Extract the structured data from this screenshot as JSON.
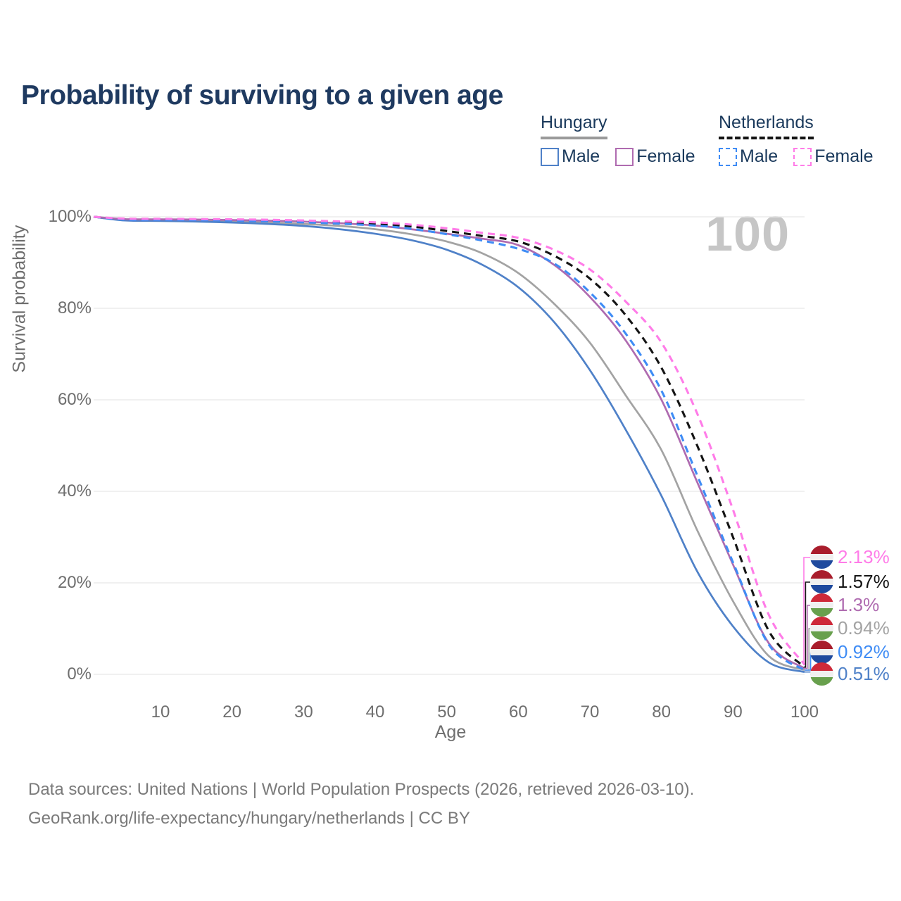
{
  "page": {
    "title": "Probability of surviving to a given age"
  },
  "colors": {
    "title_text": "#1f3a60",
    "legend_text": "#1b3a5c",
    "axis_text": "#6e6e6e",
    "gridline": "#ececec",
    "watermark": "#c6c6c6",
    "footer_text": "#7a7a7a",
    "hungary_underline": "#9a9a9a",
    "netherlands_underline": "#141414"
  },
  "legend": {
    "hungary": {
      "label": "Hungary",
      "male_label": "Male",
      "female_label": "Female"
    },
    "netherlands": {
      "label": "Netherlands",
      "male_label": "Male",
      "female_label": "Female"
    }
  },
  "watermark": {
    "hover_age": "100"
  },
  "footer": {
    "line1": "Data sources: United Nations | World Population Prospects (2026, retrieved 2026-03-10).",
    "line2": "GeoRank.org/life-expectancy/hungary/netherlands | CC BY"
  },
  "flags": {
    "hungary": [
      "#ce2939",
      "#f0f0f0",
      "#68a04d"
    ],
    "netherlands": [
      "#a91d2c",
      "#f0f0f0",
      "#1f4a9e"
    ]
  },
  "chart_data": {
    "type": "line",
    "title": "Probability of surviving to a given age",
    "xlabel": "Age",
    "ylabel": "Survival probability",
    "xlim": [
      0,
      100
    ],
    "ylim": [
      0,
      100
    ],
    "grid": "horizontal",
    "legend_position": "top-right",
    "x_ticks": [
      10,
      20,
      30,
      40,
      50,
      60,
      70,
      80,
      90,
      100
    ],
    "y_tick_values": [
      0,
      20,
      40,
      60,
      80,
      100
    ],
    "y_tick_labels": [
      "0%",
      "20%",
      "40%",
      "60%",
      "80%",
      "100%"
    ],
    "hover_age_label": "100",
    "ages": [
      0,
      5,
      10,
      15,
      20,
      25,
      30,
      35,
      40,
      45,
      50,
      55,
      60,
      65,
      70,
      75,
      80,
      85,
      90,
      95,
      100
    ],
    "series": [
      {
        "id": "hu-total",
        "name": "Hungary Both sexes",
        "country": "Hungary",
        "sex": "Both",
        "color": "#a3a3a3",
        "line_style": "solid",
        "flag": "hungary",
        "end_label": "0.94%",
        "values": [
          100,
          99.3,
          99.2,
          99.1,
          98.95,
          98.75,
          98.45,
          98.0,
          97.3,
          96.2,
          94.6,
          92.0,
          87.7,
          81.0,
          72.5,
          61.0,
          49.0,
          31.5,
          16.0,
          4.0,
          0.94
        ]
      },
      {
        "id": "hu-male",
        "name": "Hungary Male",
        "country": "Hungary",
        "sex": "Male",
        "color": "#4f81c8",
        "line_style": "solid",
        "flag": "hungary",
        "end_label": "0.51%",
        "values": [
          100,
          99.2,
          99.1,
          98.95,
          98.75,
          98.45,
          98.0,
          97.3,
          96.3,
          94.9,
          92.8,
          89.5,
          84.6,
          77.0,
          66.5,
          53.5,
          39.0,
          22.5,
          10.5,
          2.6,
          0.51
        ]
      },
      {
        "id": "hu-female",
        "name": "Hungary Female",
        "country": "Hungary",
        "sex": "Female",
        "color": "#af6bb0",
        "line_style": "solid",
        "flag": "hungary",
        "end_label": "1.3%",
        "values": [
          100,
          99.5,
          99.45,
          99.4,
          99.3,
          99.15,
          98.95,
          98.6,
          98.1,
          97.3,
          96.3,
          95.2,
          93.8,
          89.5,
          82.5,
          73.0,
          60.0,
          42.0,
          24.0,
          6.8,
          1.3
        ]
      },
      {
        "id": "nl-total",
        "name": "Netherlands Both sexes",
        "country": "Netherlands",
        "sex": "Both",
        "color": "#141414",
        "line_style": "dashed",
        "flag": "netherlands",
        "end_label": "1.57%",
        "values": [
          100,
          99.5,
          99.45,
          99.4,
          99.3,
          99.2,
          99.0,
          98.8,
          98.5,
          97.9,
          96.9,
          95.8,
          94.6,
          91.5,
          86.5,
          78.5,
          67.0,
          50.0,
          30.0,
          9.5,
          1.57
        ]
      },
      {
        "id": "nl-male",
        "name": "Netherlands Male",
        "country": "Netherlands",
        "sex": "Male",
        "color": "#3f8cf5",
        "line_style": "dashed",
        "flag": "netherlands",
        "end_label": "0.92%",
        "values": [
          100,
          99.4,
          99.35,
          99.3,
          99.2,
          99.0,
          98.8,
          98.5,
          98.1,
          97.4,
          96.2,
          94.8,
          93.0,
          89.8,
          83.5,
          74.5,
          62.0,
          43.5,
          24.5,
          6.5,
          0.92
        ]
      },
      {
        "id": "nl-female",
        "name": "Netherlands Female",
        "country": "Netherlands",
        "sex": "Female",
        "color": "#ff7ce8",
        "line_style": "dashed",
        "flag": "netherlands",
        "end_label": "2.13%",
        "values": [
          100,
          99.6,
          99.55,
          99.5,
          99.45,
          99.35,
          99.2,
          99.0,
          98.8,
          98.3,
          97.5,
          96.5,
          95.4,
          92.8,
          88.5,
          81.5,
          72.5,
          57.0,
          36.0,
          13.0,
          2.13
        ]
      }
    ],
    "end_labels_top_to_bottom": [
      "nl-female",
      "nl-total",
      "hu-female",
      "hu-total",
      "nl-male",
      "hu-male"
    ]
  }
}
